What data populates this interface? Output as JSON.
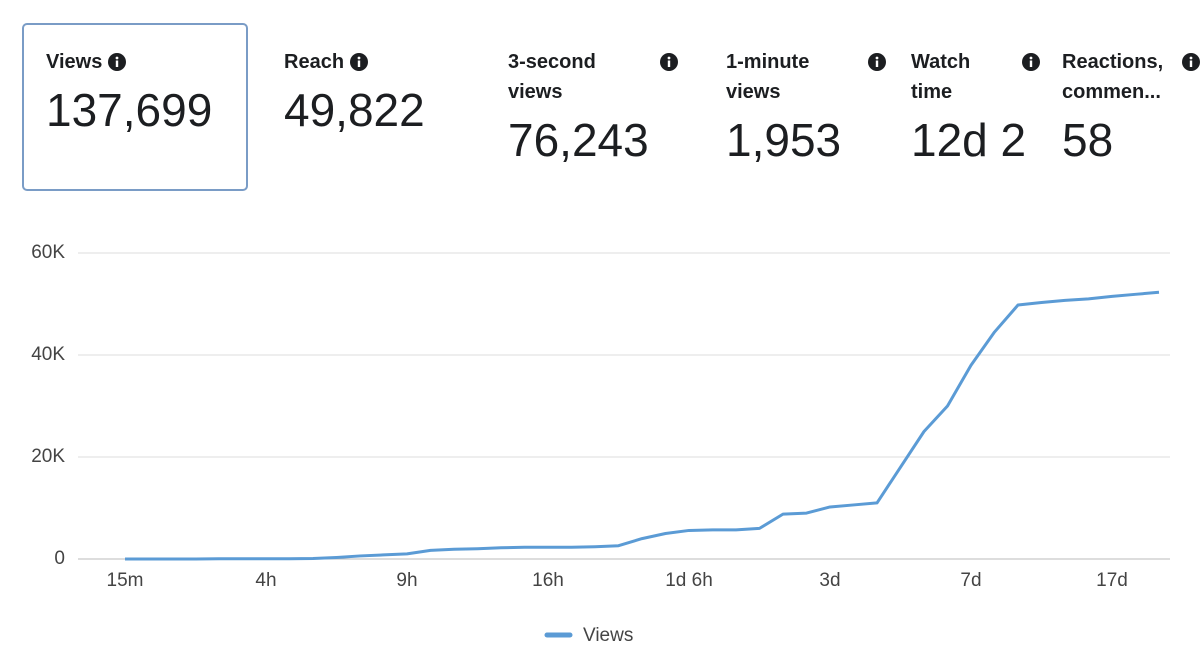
{
  "metrics": [
    {
      "label": "Views",
      "value": "137,699"
    },
    {
      "label": "Reach",
      "value": "49,822"
    },
    {
      "label": "3-second views",
      "value": "76,243"
    },
    {
      "label": "1-minute views",
      "value": "1,953"
    },
    {
      "label": "Watch time",
      "value": "12d 2"
    },
    {
      "label": "Reactions, commen...",
      "value": "58"
    }
  ],
  "chart_data": {
    "type": "line",
    "categories": [
      "15m",
      null,
      null,
      null,
      null,
      null,
      "4h",
      null,
      null,
      null,
      null,
      null,
      "9h",
      null,
      null,
      null,
      null,
      null,
      "16h",
      null,
      null,
      null,
      null,
      null,
      "1d 6h",
      null,
      null,
      null,
      null,
      null,
      "3d",
      null,
      null,
      null,
      null,
      null,
      "7d",
      null,
      null,
      null,
      null,
      null,
      "17d",
      null,
      null
    ],
    "series": [
      {
        "name": "Views",
        "color": "#5b9bd5",
        "values": [
          0,
          0,
          0,
          0,
          50,
          50,
          50,
          50,
          100,
          300,
          600,
          800,
          1000,
          1700,
          1900,
          2000,
          2200,
          2300,
          2300,
          2300,
          2400,
          2600,
          4000,
          5000,
          5600,
          5700,
          5700,
          6000,
          8800,
          9000,
          10200,
          10600,
          11000,
          18000,
          25000,
          30000,
          38000,
          44500,
          49800,
          50300,
          50700,
          51000,
          51500,
          51900,
          52300
        ]
      }
    ],
    "ylim": [
      0,
      60000
    ],
    "yticks": [
      0,
      {
        "value": 20000,
        "label": "20K"
      },
      {
        "value": 40000,
        "label": "40K"
      },
      {
        "value": 60000,
        "label": "60K"
      }
    ],
    "grid": true,
    "legend": "bottom"
  }
}
